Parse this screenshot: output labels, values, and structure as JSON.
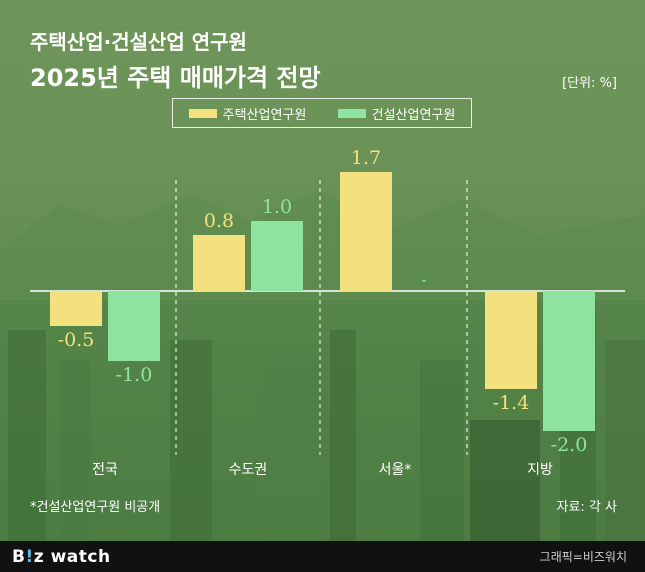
{
  "header": {
    "title_line1": "주택산업·건설산업 연구원",
    "title_line2": "2025년 주택 매매가격 전망",
    "unit": "[단위: %]"
  },
  "legend": {
    "series1": "주택산업연구원",
    "series2": "건설산업연구원"
  },
  "chart_data": {
    "type": "bar",
    "categories": [
      "전국",
      "수도권",
      "서울*",
      "지방"
    ],
    "series": [
      {
        "name": "주택산업연구원",
        "color": "#f2e17e",
        "values": [
          -0.5,
          0.8,
          1.7,
          -1.4
        ],
        "labels": [
          "-0.5",
          "0.8",
          "1.7",
          "-1.4"
        ]
      },
      {
        "name": "건설산업연구원",
        "color": "#8ee3a0",
        "values": [
          -1.0,
          1.0,
          null,
          -2.0
        ],
        "labels": [
          "-1.0",
          "1.0",
          "-",
          "-2.0"
        ]
      }
    ],
    "ylim": [
      -2.0,
      1.7
    ],
    "grid": false,
    "legend": "top"
  },
  "footnote": "*건설산업연구원 비공개",
  "source": "자료: 각 사",
  "footer": {
    "logo_b": "B",
    "logo_i": "!",
    "logo_z": "z",
    "logo_watch": "watch",
    "credit": "그래픽=비즈워치"
  }
}
